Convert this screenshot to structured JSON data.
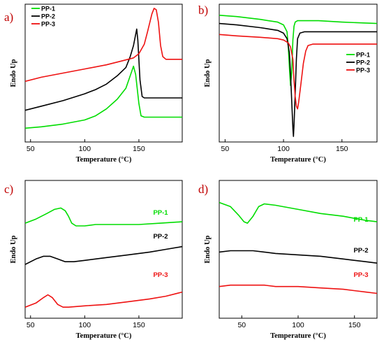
{
  "colors": {
    "PP-1": "#00dd00",
    "PP-2": "#000000",
    "PP-3": "#ee1111"
  },
  "chart_data": [
    {
      "panel": "a)",
      "type": "line",
      "xlabel": "Temperature (°C)",
      "ylabel": "Endo Up",
      "xlim": [
        45,
        190
      ],
      "ylim": [
        0,
        10
      ],
      "xticks": [
        50,
        100,
        150
      ],
      "legend": "top-left",
      "series": [
        {
          "name": "PP-1",
          "color": "#00dd00",
          "x": [
            45,
            60,
            80,
            100,
            110,
            120,
            130,
            138,
            142,
            145,
            147,
            150,
            152,
            155,
            160,
            180,
            190
          ],
          "y": [
            1.0,
            1.1,
            1.3,
            1.6,
            1.9,
            2.4,
            3.1,
            3.9,
            4.8,
            5.5,
            4.9,
            2.8,
            1.9,
            1.8,
            1.8,
            1.8,
            1.8
          ]
        },
        {
          "name": "PP-2",
          "color": "#000000",
          "x": [
            45,
            60,
            80,
            100,
            110,
            120,
            130,
            138,
            142,
            145,
            147,
            148,
            149,
            151,
            153,
            155,
            160,
            180,
            190
          ],
          "y": [
            2.3,
            2.6,
            3.0,
            3.5,
            3.8,
            4.2,
            4.8,
            5.4,
            6.2,
            7.0,
            7.8,
            8.2,
            7.4,
            4.5,
            3.3,
            3.2,
            3.2,
            3.2,
            3.2
          ]
        },
        {
          "name": "PP-3",
          "color": "#ee1111",
          "x": [
            45,
            60,
            80,
            100,
            120,
            135,
            145,
            150,
            155,
            158,
            162,
            164,
            166,
            168,
            170,
            172,
            175,
            180,
            190
          ],
          "y": [
            4.4,
            4.7,
            5.0,
            5.3,
            5.6,
            5.9,
            6.1,
            6.4,
            7.1,
            8.0,
            9.3,
            9.7,
            9.6,
            8.7,
            7.0,
            6.2,
            6.0,
            6.0,
            6.0
          ]
        }
      ]
    },
    {
      "panel": "b)",
      "type": "line",
      "xlabel": "Temperature (°C)",
      "ylabel": "Endo Up",
      "xlim": [
        45,
        180
      ],
      "ylim": [
        0,
        10
      ],
      "xticks": [
        50,
        100,
        150
      ],
      "legend": "right",
      "series": [
        {
          "name": "PP-1",
          "color": "#00dd00",
          "x": [
            45,
            60,
            80,
            95,
            100,
            103,
            104,
            105,
            106,
            107,
            108,
            109,
            110,
            112,
            115,
            130,
            150,
            180
          ],
          "y": [
            9.2,
            9.1,
            8.9,
            8.7,
            8.5,
            8.0,
            7.0,
            5.5,
            4.1,
            5.0,
            7.4,
            8.4,
            8.7,
            8.8,
            8.8,
            8.8,
            8.7,
            8.6
          ]
        },
        {
          "name": "PP-2",
          "color": "#000000",
          "x": [
            45,
            60,
            80,
            95,
            100,
            103,
            105,
            106,
            107,
            108,
            108.5,
            109,
            110,
            111,
            112,
            114,
            118,
            130,
            150,
            180
          ],
          "y": [
            8.6,
            8.5,
            8.3,
            8.1,
            7.9,
            7.5,
            6.5,
            5.0,
            3.0,
            1.0,
            0.4,
            1.2,
            3.5,
            6.0,
            7.5,
            7.9,
            8.0,
            8.0,
            8.0,
            8.0
          ]
        },
        {
          "name": "PP-3",
          "color": "#ee1111",
          "x": [
            45,
            60,
            80,
            95,
            100,
            104,
            106,
            108,
            109,
            110,
            111,
            112,
            113,
            115,
            117,
            119,
            121,
            125,
            130,
            150,
            180
          ],
          "y": [
            7.8,
            7.7,
            7.6,
            7.5,
            7.4,
            7.2,
            6.9,
            6.0,
            4.5,
            3.3,
            2.6,
            2.4,
            2.9,
            4.3,
            5.7,
            6.6,
            7.0,
            7.1,
            7.1,
            7.1,
            7.1
          ]
        }
      ]
    },
    {
      "panel": "c)",
      "type": "line",
      "xlabel": "Temperature (°C)",
      "ylabel": "Endo Up",
      "xlim": [
        45,
        190
      ],
      "ylim": [
        0,
        10
      ],
      "xticks": [
        50,
        100,
        150
      ],
      "series": [
        {
          "name": "PP-1",
          "color": "#00dd00",
          "label": "PP-1",
          "x": [
            45,
            55,
            65,
            72,
            78,
            82,
            85,
            88,
            92,
            96,
            100,
            110,
            130,
            150,
            170,
            190
          ],
          "y": [
            6.9,
            7.2,
            7.6,
            7.9,
            8.0,
            7.8,
            7.4,
            6.9,
            6.7,
            6.7,
            6.7,
            6.8,
            6.8,
            6.8,
            6.9,
            7.0
          ]
        },
        {
          "name": "PP-2",
          "color": "#000000",
          "label": "PP-2",
          "x": [
            45,
            55,
            62,
            68,
            75,
            82,
            90,
            100,
            120,
            140,
            160,
            175,
            190
          ],
          "y": [
            3.9,
            4.3,
            4.5,
            4.5,
            4.3,
            4.1,
            4.1,
            4.2,
            4.4,
            4.6,
            4.8,
            5.0,
            5.2
          ]
        },
        {
          "name": "PP-3",
          "color": "#ee1111",
          "label": "PP-3",
          "x": [
            45,
            55,
            62,
            66,
            70,
            75,
            80,
            85,
            100,
            120,
            140,
            160,
            175,
            190
          ],
          "y": [
            0.8,
            1.1,
            1.5,
            1.7,
            1.5,
            1.0,
            0.8,
            0.8,
            0.9,
            1.0,
            1.2,
            1.4,
            1.6,
            1.9
          ]
        }
      ]
    },
    {
      "panel": "d)",
      "type": "line",
      "xlabel": "Temperature (°C)",
      "ylabel": "Endo Up",
      "xlim": [
        30,
        170
      ],
      "ylim": [
        0,
        10
      ],
      "xticks": [
        50,
        100,
        150
      ],
      "series": [
        {
          "name": "PP-1",
          "color": "#00dd00",
          "label": "PP-1",
          "x": [
            30,
            40,
            47,
            52,
            55,
            60,
            65,
            70,
            80,
            100,
            120,
            140,
            160,
            170
          ],
          "y": [
            8.4,
            8.1,
            7.5,
            7.0,
            6.9,
            7.4,
            8.1,
            8.3,
            8.2,
            7.9,
            7.6,
            7.4,
            7.1,
            7.0
          ]
        },
        {
          "name": "PP-2",
          "color": "#000000",
          "label": "PP-2",
          "x": [
            30,
            40,
            50,
            60,
            70,
            80,
            100,
            120,
            140,
            160,
            170
          ],
          "y": [
            4.8,
            4.9,
            4.9,
            4.9,
            4.8,
            4.7,
            4.6,
            4.5,
            4.3,
            4.1,
            4.0
          ]
        },
        {
          "name": "PP-3",
          "color": "#ee1111",
          "label": "PP-3",
          "x": [
            30,
            40,
            50,
            60,
            70,
            80,
            100,
            120,
            140,
            160,
            170
          ],
          "y": [
            2.3,
            2.4,
            2.4,
            2.4,
            2.4,
            2.3,
            2.3,
            2.2,
            2.1,
            1.9,
            1.8
          ]
        }
      ]
    }
  ]
}
